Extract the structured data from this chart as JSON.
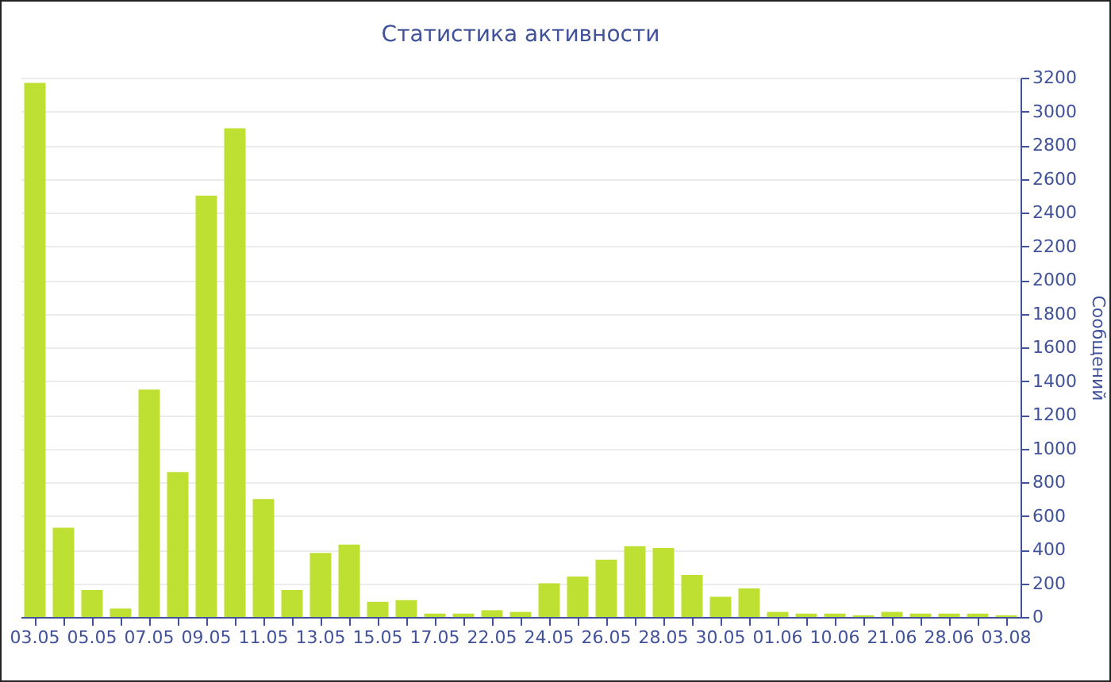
{
  "chart_data": {
    "type": "bar",
    "title": "Статистика активности",
    "ylabel": "Сообщений",
    "categories": [
      "03.05",
      null,
      "05.05",
      null,
      "07.05",
      null,
      "09.05",
      null,
      "11.05",
      null,
      "13.05",
      null,
      "15.05",
      null,
      "17.05",
      null,
      "22.05",
      null,
      "24.05",
      null,
      "26.05",
      null,
      "28.05",
      null,
      "30.05",
      null,
      "01.06",
      null,
      "10.06",
      null,
      "21.06",
      null,
      "28.06",
      null,
      "03.08"
    ],
    "values": [
      3170,
      530,
      160,
      50,
      1350,
      860,
      2500,
      2900,
      700,
      160,
      380,
      430,
      90,
      100,
      20,
      20,
      40,
      30,
      200,
      240,
      340,
      420,
      410,
      250,
      120,
      170,
      30,
      20,
      20,
      10,
      30,
      20,
      20,
      20,
      10
    ],
    "color": "#bde033",
    "ylim": [
      0,
      3200
    ],
    "yticks": [
      0,
      200,
      400,
      600,
      800,
      1000,
      1200,
      1400,
      1600,
      1800,
      2000,
      2200,
      2400,
      2600,
      2800,
      3000,
      3200
    ],
    "grid": "y"
  }
}
